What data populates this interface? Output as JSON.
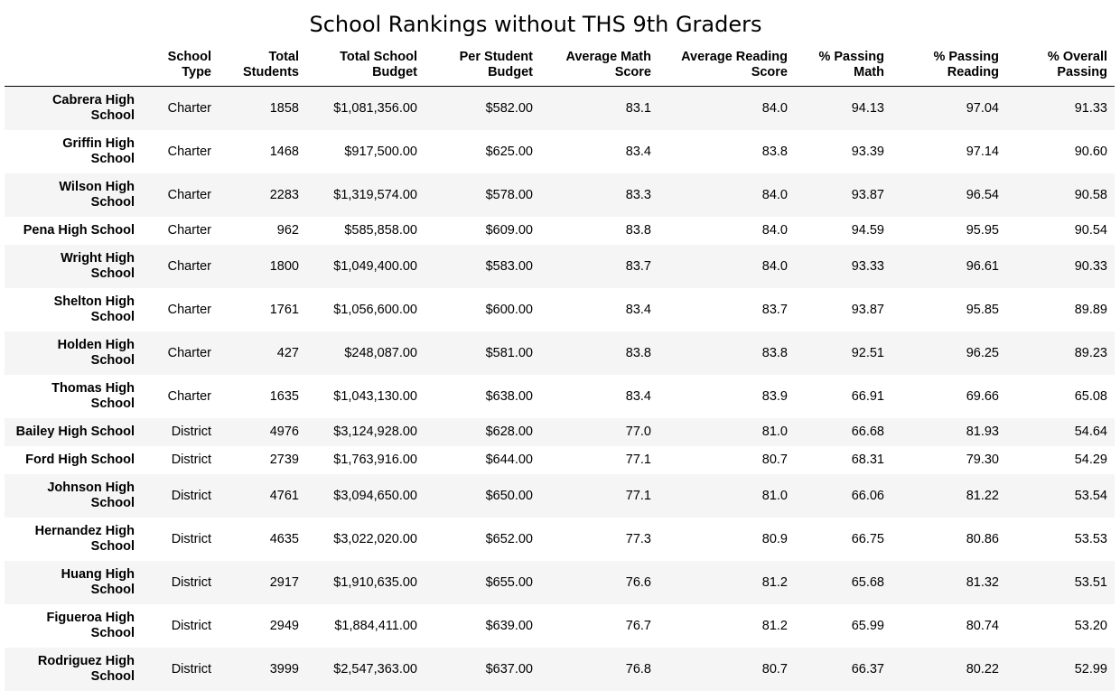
{
  "title": "School Rankings without THS 9th Graders",
  "columns": [
    {
      "line1": "School",
      "line2": "Type"
    },
    {
      "line1": "Total",
      "line2": "Students"
    },
    {
      "line1": "Total School",
      "line2": "Budget"
    },
    {
      "line1": "Per Student",
      "line2": "Budget"
    },
    {
      "line1": "Average Math",
      "line2": "Score"
    },
    {
      "line1": "Average Reading",
      "line2": "Score"
    },
    {
      "line1": "% Passing",
      "line2": "Math"
    },
    {
      "line1": "% Passing",
      "line2": "Reading"
    },
    {
      "line1": "% Overall",
      "line2": "Passing"
    }
  ],
  "rows": [
    {
      "name1": "Cabrera High",
      "name2": "School",
      "type": "Charter",
      "students": "1858",
      "budget": "$1,081,356.00",
      "per_student": "$582.00",
      "math": "83.1",
      "reading": "84.0",
      "pass_math": "94.13",
      "pass_reading": "97.04",
      "overall": "91.33"
    },
    {
      "name1": "Griffin High",
      "name2": "School",
      "type": "Charter",
      "students": "1468",
      "budget": "$917,500.00",
      "per_student": "$625.00",
      "math": "83.4",
      "reading": "83.8",
      "pass_math": "93.39",
      "pass_reading": "97.14",
      "overall": "90.60"
    },
    {
      "name1": "Wilson High",
      "name2": "School",
      "type": "Charter",
      "students": "2283",
      "budget": "$1,319,574.00",
      "per_student": "$578.00",
      "math": "83.3",
      "reading": "84.0",
      "pass_math": "93.87",
      "pass_reading": "96.54",
      "overall": "90.58"
    },
    {
      "name1": "Pena High School",
      "name2": "",
      "type": "Charter",
      "students": "962",
      "budget": "$585,858.00",
      "per_student": "$609.00",
      "math": "83.8",
      "reading": "84.0",
      "pass_math": "94.59",
      "pass_reading": "95.95",
      "overall": "90.54"
    },
    {
      "name1": "Wright High",
      "name2": "School",
      "type": "Charter",
      "students": "1800",
      "budget": "$1,049,400.00",
      "per_student": "$583.00",
      "math": "83.7",
      "reading": "84.0",
      "pass_math": "93.33",
      "pass_reading": "96.61",
      "overall": "90.33"
    },
    {
      "name1": "Shelton High",
      "name2": "School",
      "type": "Charter",
      "students": "1761",
      "budget": "$1,056,600.00",
      "per_student": "$600.00",
      "math": "83.4",
      "reading": "83.7",
      "pass_math": "93.87",
      "pass_reading": "95.85",
      "overall": "89.89"
    },
    {
      "name1": "Holden High",
      "name2": "School",
      "type": "Charter",
      "students": "427",
      "budget": "$248,087.00",
      "per_student": "$581.00",
      "math": "83.8",
      "reading": "83.8",
      "pass_math": "92.51",
      "pass_reading": "96.25",
      "overall": "89.23"
    },
    {
      "name1": "Thomas High",
      "name2": "School",
      "type": "Charter",
      "students": "1635",
      "budget": "$1,043,130.00",
      "per_student": "$638.00",
      "math": "83.4",
      "reading": "83.9",
      "pass_math": "66.91",
      "pass_reading": "69.66",
      "overall": "65.08"
    },
    {
      "name1": "Bailey High School",
      "name2": "",
      "type": "District",
      "students": "4976",
      "budget": "$3,124,928.00",
      "per_student": "$628.00",
      "math": "77.0",
      "reading": "81.0",
      "pass_math": "66.68",
      "pass_reading": "81.93",
      "overall": "54.64"
    },
    {
      "name1": "Ford High School",
      "name2": "",
      "type": "District",
      "students": "2739",
      "budget": "$1,763,916.00",
      "per_student": "$644.00",
      "math": "77.1",
      "reading": "80.7",
      "pass_math": "68.31",
      "pass_reading": "79.30",
      "overall": "54.29"
    },
    {
      "name1": "Johnson High",
      "name2": "School",
      "type": "District",
      "students": "4761",
      "budget": "$3,094,650.00",
      "per_student": "$650.00",
      "math": "77.1",
      "reading": "81.0",
      "pass_math": "66.06",
      "pass_reading": "81.22",
      "overall": "53.54"
    },
    {
      "name1": "Hernandez High",
      "name2": "School",
      "type": "District",
      "students": "4635",
      "budget": "$3,022,020.00",
      "per_student": "$652.00",
      "math": "77.3",
      "reading": "80.9",
      "pass_math": "66.75",
      "pass_reading": "80.86",
      "overall": "53.53"
    },
    {
      "name1": "Huang High",
      "name2": "School",
      "type": "District",
      "students": "2917",
      "budget": "$1,910,635.00",
      "per_student": "$655.00",
      "math": "76.6",
      "reading": "81.2",
      "pass_math": "65.68",
      "pass_reading": "81.32",
      "overall": "53.51"
    },
    {
      "name1": "Figueroa High",
      "name2": "School",
      "type": "District",
      "students": "2949",
      "budget": "$1,884,411.00",
      "per_student": "$639.00",
      "math": "76.7",
      "reading": "81.2",
      "pass_math": "65.99",
      "pass_reading": "80.74",
      "overall": "53.20"
    },
    {
      "name1": "Rodriguez High",
      "name2": "School",
      "type": "District",
      "students": "3999",
      "budget": "$2,547,363.00",
      "per_student": "$637.00",
      "math": "76.8",
      "reading": "80.7",
      "pass_math": "66.37",
      "pass_reading": "80.22",
      "overall": "52.99"
    }
  ]
}
